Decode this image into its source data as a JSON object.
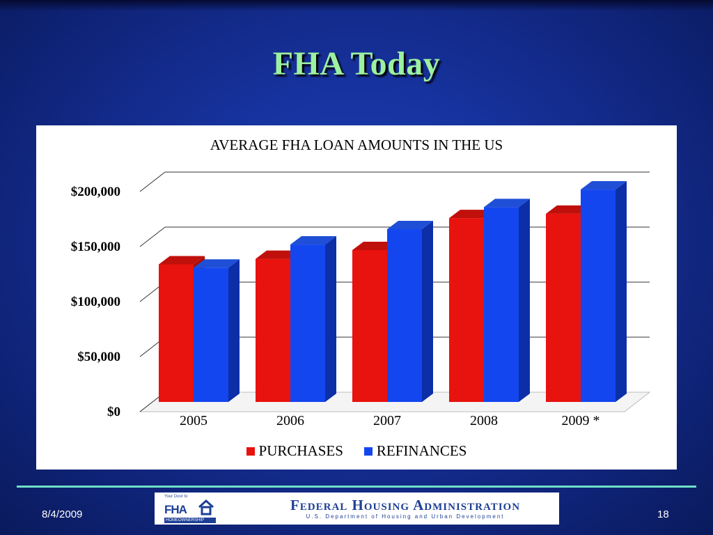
{
  "slide": {
    "title": "FHA Today",
    "date": "8/4/2009",
    "page_number": "18"
  },
  "logo": {
    "tagline": "Your Door to",
    "letters": "FHA",
    "homeownership": "HOMEOWNERSHIP",
    "agency_name": "Federal Housing Administration",
    "agency_sub": "U.S. Department of Housing and Urban Development"
  },
  "colors": {
    "purchases": "#e8120e",
    "refinances": "#1446f0",
    "title": "#9cf0a0",
    "rule": "#6fe0c8"
  },
  "chart_data": {
    "type": "bar",
    "title": "AVERAGE FHA LOAN AMOUNTS IN THE US",
    "categories": [
      "2005",
      "2006",
      "2007",
      "2008",
      "2009 *"
    ],
    "series": [
      {
        "name": "PURCHASES",
        "values": [
          125000,
          130000,
          138000,
          167000,
          171000
        ]
      },
      {
        "name": "REFINANCES",
        "values": [
          122000,
          143000,
          157000,
          177000,
          193000
        ]
      }
    ],
    "yticks": [
      "$0",
      "$50,000",
      "$100,000",
      "$150,000",
      "$200,000"
    ],
    "ylim": [
      0,
      200000
    ],
    "grid": true,
    "legend_position": "bottom",
    "style": "3d-clustered-bar"
  }
}
